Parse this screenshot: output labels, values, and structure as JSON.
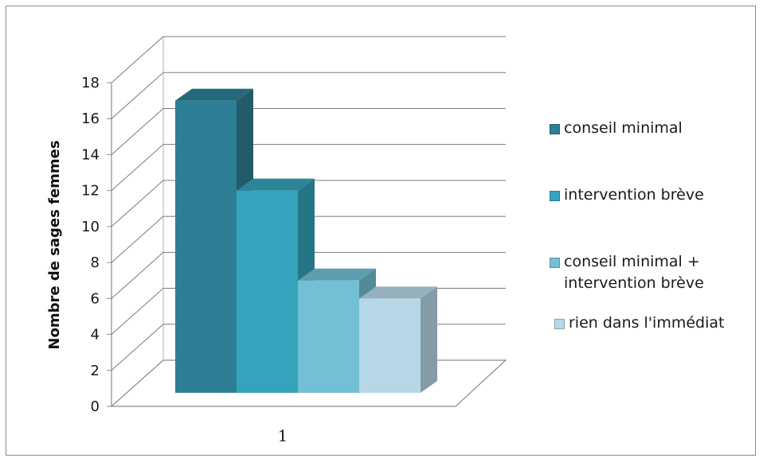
{
  "chart_data": {
    "type": "bar",
    "style": "3d-clustered-column",
    "categories": [
      "1"
    ],
    "series": [
      {
        "name": "conseil minimal",
        "values": [
          17
        ],
        "color": "#2e7f96"
      },
      {
        "name": "intervention  brève",
        "values": [
          12
        ],
        "color": "#34a3bb"
      },
      {
        "name": "conseil minimal +\nintervention brève",
        "values": [
          7
        ],
        "color": "#73c0d6"
      },
      {
        "name": "rien dans l'immédiat",
        "values": [
          6
        ],
        "color": "#b6d8e6"
      }
    ],
    "title": "",
    "xlabel": "",
    "ylabel": "Nombre de sages femmes",
    "ylim": [
      0,
      18
    ],
    "yticks": [
      0,
      2,
      4,
      6,
      8,
      10,
      12,
      14,
      16,
      18
    ],
    "grid": true,
    "legend_position": "right"
  }
}
